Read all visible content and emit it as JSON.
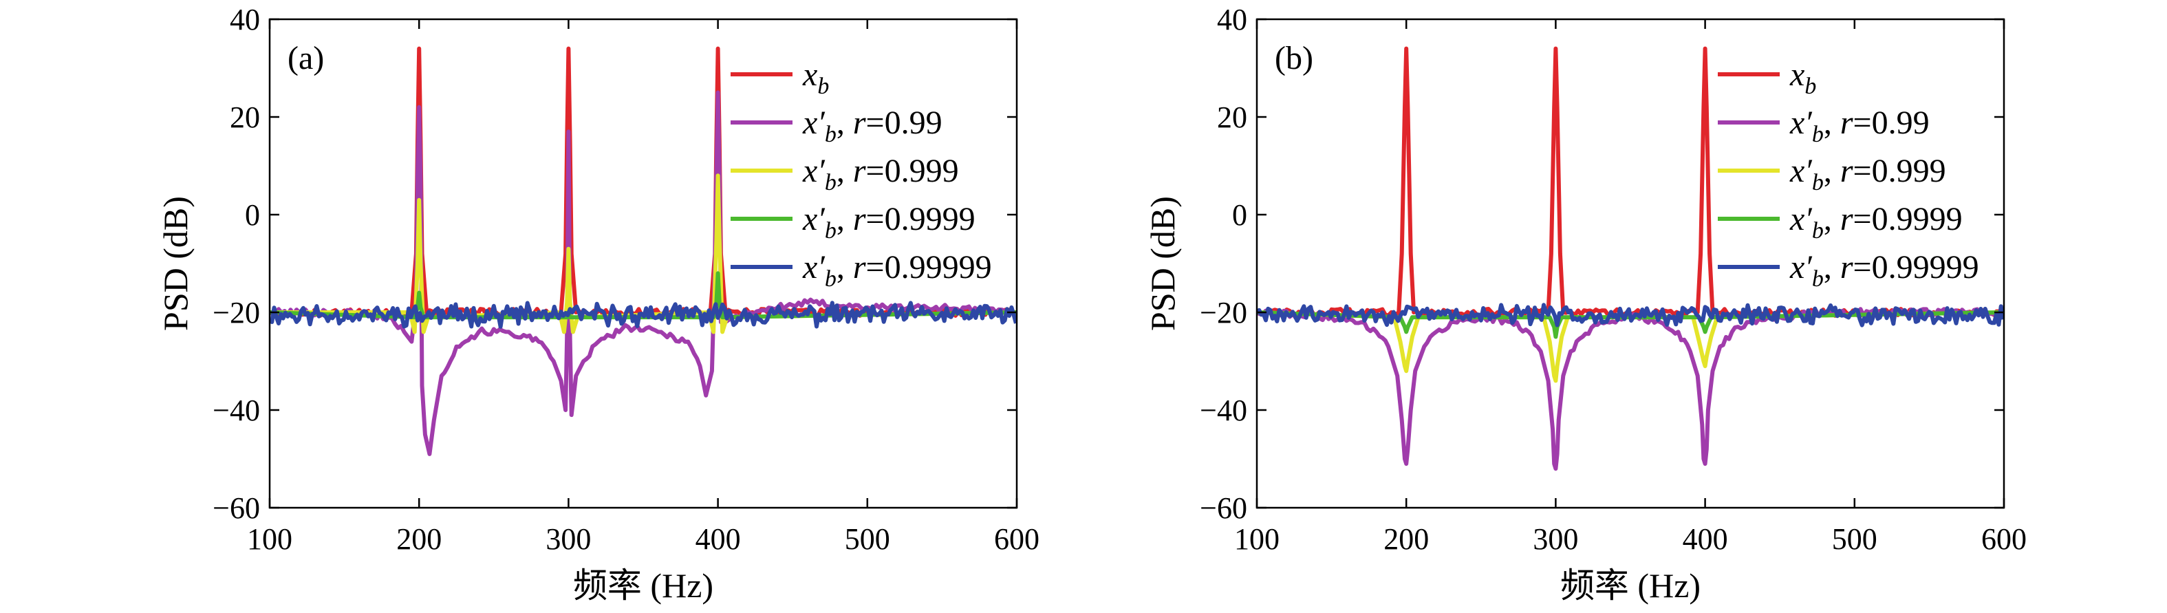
{
  "chart_data": [
    {
      "type": "line",
      "panel_label": "(a)",
      "xlabel": "频率 (Hz)",
      "ylabel": "PSD (dB)",
      "xlim": [
        100,
        600
      ],
      "ylim": [
        -60,
        40
      ],
      "xticks": [
        100,
        200,
        300,
        400,
        500,
        600
      ],
      "yticks": [
        -60,
        -40,
        -20,
        0,
        20,
        40
      ],
      "legend_position": "top-right",
      "grid": false,
      "series": [
        {
          "name": "x_b",
          "label_main": "x",
          "label_sub": "b",
          "label_tail": "",
          "color": "#e0262b",
          "x": [
            100,
            195,
            198,
            199,
            200,
            201,
            202,
            205,
            295,
            298,
            299,
            300,
            301,
            302,
            305,
            395,
            398,
            399,
            400,
            401,
            402,
            405,
            600
          ],
          "y": [
            -20,
            -20,
            -8,
            15,
            34,
            15,
            -8,
            -20,
            -20,
            -8,
            15,
            34,
            15,
            -8,
            -20,
            -20,
            -8,
            15,
            34,
            15,
            -8,
            -20,
            -20
          ]
        },
        {
          "name": "x'_b, r=0.99",
          "label_main": "x′",
          "label_sub": "b",
          "label_tail": ", r=0.99",
          "color": "#a03cab",
          "x": [
            100,
            150,
            180,
            190,
            195,
            198,
            199,
            200,
            201,
            202,
            204,
            207,
            210,
            215,
            225,
            240,
            260,
            280,
            290,
            295,
            298,
            299,
            300,
            301,
            302,
            305,
            310,
            320,
            340,
            360,
            380,
            388,
            392,
            396,
            398,
            399,
            400,
            401,
            402,
            405,
            410,
            420,
            440,
            460,
            500,
            550,
            600
          ],
          "y": [
            -20,
            -20,
            -21,
            -24,
            -26,
            -18,
            8,
            22,
            8,
            -35,
            -45,
            -49,
            -42,
            -33,
            -27,
            -24,
            -24,
            -26,
            -30,
            -34,
            -40,
            -25,
            17,
            -25,
            -41,
            -33,
            -30,
            -26,
            -23,
            -24,
            -26,
            -31,
            -37,
            -32,
            -10,
            8,
            25,
            8,
            -22,
            -22,
            -21,
            -20,
            -19,
            -18,
            -19,
            -19,
            -20
          ]
        },
        {
          "name": "x'_b, r=0.999",
          "label_main": "x′",
          "label_sub": "b",
          "label_tail": ", r=0.999",
          "color": "#e4e42a",
          "x": [
            100,
            194,
            197,
            199,
            200,
            201,
            203,
            206,
            294,
            297,
            299,
            300,
            301,
            303,
            306,
            394,
            397,
            399,
            400,
            401,
            403,
            406,
            600
          ],
          "y": [
            -20,
            -20,
            -24,
            -10,
            3,
            -10,
            -24,
            -21,
            -20,
            -24,
            -18,
            -7,
            -18,
            -24,
            -21,
            -20,
            -24,
            -5,
            8,
            -5,
            -24,
            -21,
            -20
          ]
        },
        {
          "name": "x'_b, r=0.9999",
          "label_main": "x′",
          "label_sub": "b",
          "label_tail": ", r=0.9999",
          "color": "#4bb92e",
          "x": [
            100,
            197,
            199,
            200,
            201,
            203,
            297,
            299,
            300,
            301,
            303,
            397,
            399,
            400,
            401,
            403,
            600
          ],
          "y": [
            -20,
            -21,
            -19,
            -16,
            -19,
            -21,
            -21,
            -21,
            -20,
            -21,
            -21,
            -21,
            -18,
            -12,
            -18,
            -21,
            -20
          ]
        },
        {
          "name": "x'_b, r=0.99999",
          "label_main": "x′",
          "label_sub": "b",
          "label_tail": ", r=0.99999",
          "color": "#2e47a5",
          "noise": {
            "base": -20.5,
            "amp": 1.6,
            "step": 1.5,
            "seed": 11
          },
          "x": [
            100,
            600
          ],
          "y": [
            -20,
            -20
          ]
        }
      ]
    },
    {
      "type": "line",
      "panel_label": "(b)",
      "xlabel": "频率 (Hz)",
      "ylabel": "PSD (dB)",
      "xlim": [
        100,
        600
      ],
      "ylim": [
        -60,
        40
      ],
      "xticks": [
        100,
        200,
        300,
        400,
        500,
        600
      ],
      "yticks": [
        -60,
        -40,
        -20,
        0,
        20,
        40
      ],
      "legend_position": "top-right",
      "grid": false,
      "series": [
        {
          "name": "x_b",
          "label_main": "x",
          "label_sub": "b",
          "label_tail": "",
          "color": "#e0262b",
          "x": [
            100,
            195,
            197,
            199,
            200,
            201,
            203,
            205,
            295,
            297,
            299,
            300,
            301,
            303,
            305,
            395,
            397,
            399,
            400,
            401,
            403,
            405,
            600
          ],
          "y": [
            -20,
            -20,
            -8,
            22,
            34,
            22,
            -8,
            -20,
            -20,
            -8,
            22,
            34,
            22,
            -8,
            -20,
            -20,
            -8,
            22,
            34,
            22,
            -8,
            -20,
            -20
          ]
        },
        {
          "name": "x'_b, r=0.99",
          "label_main": "x′",
          "label_sub": "b",
          "label_tail": ", r=0.99",
          "color": "#a03cab",
          "x": [
            100,
            150,
            170,
            180,
            188,
            194,
            197,
            199,
            200,
            201,
            203,
            206,
            212,
            220,
            232,
            250,
            270,
            282,
            290,
            295,
            298,
            299,
            300,
            301,
            302,
            305,
            310,
            318,
            330,
            350,
            370,
            382,
            390,
            395,
            398,
            399,
            400,
            401,
            402,
            405,
            410,
            418,
            430,
            450,
            480,
            520,
            600
          ],
          "y": [
            -20,
            -21,
            -22,
            -24,
            -27,
            -33,
            -42,
            -50,
            -51,
            -48,
            -40,
            -32,
            -27,
            -24,
            -22,
            -21,
            -22,
            -24,
            -28,
            -34,
            -44,
            -51,
            -52,
            -49,
            -42,
            -33,
            -28,
            -25,
            -22,
            -21,
            -22,
            -24,
            -28,
            -33,
            -43,
            -50,
            -51,
            -48,
            -40,
            -32,
            -27,
            -24,
            -22,
            -21,
            -20,
            -20,
            -20
          ]
        },
        {
          "name": "x'_b, r=0.999",
          "label_main": "x′",
          "label_sub": "b",
          "label_tail": ", r=0.999",
          "color": "#e4e42a",
          "x": [
            100,
            192,
            196,
            199,
            200,
            201,
            204,
            208,
            292,
            296,
            299,
            300,
            301,
            304,
            308,
            392,
            396,
            399,
            400,
            401,
            404,
            408,
            600
          ],
          "y": [
            -20,
            -21,
            -26,
            -31,
            -32,
            -30,
            -25,
            -21,
            -21,
            -26,
            -33,
            -34,
            -31,
            -25,
            -21,
            -21,
            -26,
            -30,
            -31,
            -29,
            -25,
            -21,
            -20
          ]
        },
        {
          "name": "x'_b, r=0.9999",
          "label_main": "x′",
          "label_sub": "b",
          "label_tail": ", r=0.9999",
          "color": "#4bb92e",
          "x": [
            100,
            196,
            199,
            200,
            201,
            204,
            296,
            299,
            300,
            301,
            304,
            396,
            399,
            400,
            401,
            404,
            600
          ],
          "y": [
            -20,
            -21,
            -23,
            -24,
            -23,
            -21,
            -21,
            -23,
            -25,
            -23,
            -21,
            -21,
            -23,
            -24,
            -23,
            -21,
            -20
          ]
        },
        {
          "name": "x'_b, r=0.99999",
          "label_main": "x′",
          "label_sub": "b",
          "label_tail": ", r=0.99999",
          "color": "#2e47a5",
          "noise": {
            "base": -20.5,
            "amp": 1.4,
            "step": 1.5,
            "seed": 29
          },
          "x": [
            100,
            600
          ],
          "y": [
            -20,
            -20
          ]
        }
      ]
    }
  ]
}
